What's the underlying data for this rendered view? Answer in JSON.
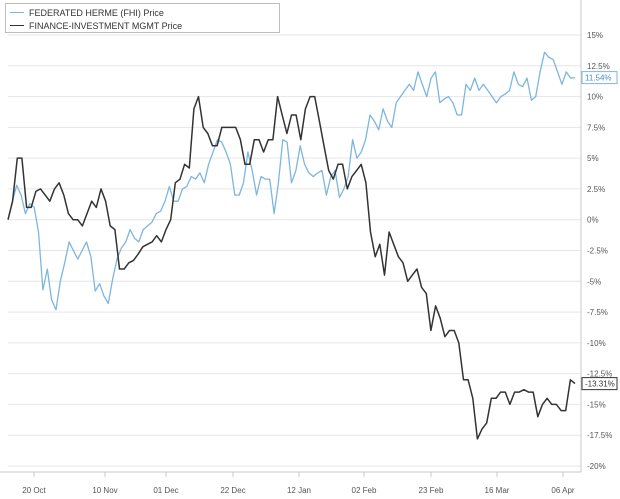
{
  "colors": {
    "fhi": "#7db6df",
    "fimg": "#333333",
    "grid": "#e6e6e6",
    "axis": "#c8c8c8",
    "tick_text": "#555555"
  },
  "chart_data": {
    "type": "line",
    "title": "",
    "xlabel": "",
    "ylabel": "",
    "ylim": [
      -20,
      15
    ],
    "y_ticks": [
      15,
      12.5,
      10,
      7.5,
      5,
      2.5,
      0,
      -2.5,
      -5,
      -7.5,
      -10,
      -12.5,
      -15,
      -17.5,
      -20
    ],
    "y_tick_labels": [
      "15%",
      "12.5%",
      "10%",
      "7.5%",
      "5%",
      "2.5%",
      "0%",
      "-2.5%",
      "-5%",
      "-7.5%",
      "-10%",
      "-12.5%",
      "-15%",
      "-17.5%",
      "-20%"
    ],
    "x_tick_labels": [
      "20 Oct",
      "10 Nov",
      "01 Dec",
      "22 Dec",
      "12 Jan",
      "02 Feb",
      "23 Feb",
      "16 Mar",
      "06 Apr"
    ],
    "legend_position": "top-left",
    "grid": "horizontal",
    "series": [
      {
        "name": "FEDERATED HERME (FHI) Price",
        "color_key": "fhi",
        "last_label": "11.54%",
        "values": [
          0.0,
          1.5,
          2.8,
          2.0,
          0.5,
          1.3,
          1.0,
          -1.0,
          -5.7,
          -4.0,
          -6.5,
          -7.3,
          -5.0,
          -3.5,
          -1.8,
          -2.5,
          -3.2,
          -2.5,
          -1.8,
          -3.0,
          -5.8,
          -5.2,
          -6.2,
          -6.8,
          -4.8,
          -3.2,
          -2.3,
          -1.8,
          -0.8,
          -1.5,
          -1.8,
          -0.8,
          -0.5,
          -0.2,
          0.5,
          0.7,
          1.5,
          2.7,
          1.5,
          1.5,
          2.5,
          2.7,
          3.5,
          3.3,
          3.8,
          3.0,
          4.5,
          5.5,
          6.5,
          6.3,
          5.5,
          4.5,
          2.0,
          2.0,
          3.0,
          5.5,
          4.0,
          2.0,
          3.5,
          3.3,
          3.3,
          0.5,
          3.0,
          6.5,
          6.3,
          3.0,
          4.0,
          6.0,
          4.5,
          3.8,
          3.5,
          3.8,
          4.0,
          2.0,
          3.5,
          4.0,
          1.8,
          2.5,
          3.5,
          6.5,
          5.0,
          5.5,
          6.5,
          8.5,
          8.0,
          7.3,
          9.0,
          8.0,
          7.5,
          9.5,
          10.0,
          10.5,
          11.0,
          10.5,
          12.0,
          11.0,
          10.0,
          11.5,
          12.0,
          9.5,
          9.8,
          10.0,
          9.5,
          8.5,
          8.5,
          11.0,
          10.5,
          11.5,
          10.5,
          11.0,
          10.5,
          10.0,
          9.5,
          10.0,
          10.2,
          10.5,
          12.0,
          11.0,
          10.8,
          11.5,
          9.7,
          10.0,
          12.0,
          13.6,
          13.2,
          13.0,
          12.0,
          11.0,
          12.0,
          11.5,
          11.54
        ]
      },
      {
        "name": "FINANCE-INVESTMENT MGMT Price",
        "color_key": "fimg",
        "last_label": "-13.31%",
        "values": [
          0.0,
          1.5,
          5.0,
          5.0,
          1.0,
          1.0,
          2.3,
          2.5,
          2.0,
          1.5,
          2.5,
          3.0,
          2.0,
          0.5,
          0.0,
          0.0,
          -0.5,
          0.5,
          1.5,
          1.0,
          2.5,
          1.5,
          -0.5,
          -0.8,
          -4.0,
          -4.0,
          -3.5,
          -3.3,
          -2.8,
          -2.2,
          -2.0,
          -1.8,
          -1.3,
          -1.8,
          -0.8,
          0.0,
          3.0,
          3.3,
          4.5,
          4.2,
          9.0,
          10.0,
          7.5,
          7.0,
          6.0,
          6.0,
          7.5,
          7.5,
          7.5,
          7.5,
          6.5,
          4.5,
          4.5,
          6.5,
          6.5,
          5.5,
          6.5,
          6.5,
          10.0,
          8.5,
          7.0,
          8.5,
          8.5,
          6.5,
          9.0,
          10.0,
          10.0,
          8.0,
          6.0,
          4.0,
          3.3,
          4.5,
          4.5,
          2.5,
          3.5,
          4.0,
          4.5,
          3.0,
          -1.0,
          -3.0,
          -2.0,
          -4.5,
          -1.0,
          -2.0,
          -3.0,
          -3.5,
          -5.0,
          -4.5,
          -4.0,
          -5.5,
          -6.0,
          -9.0,
          -7.0,
          -8.0,
          -9.5,
          -9.0,
          -9.0,
          -10.0,
          -13.0,
          -13.0,
          -14.5,
          -17.8,
          -17.0,
          -16.5,
          -14.5,
          -14.5,
          -14.0,
          -14.0,
          -15.0,
          -14.0,
          -14.0,
          -13.8,
          -14.0,
          -14.0,
          -16.0,
          -15.0,
          -14.5,
          -15.0,
          -15.0,
          -15.5,
          -15.5,
          -13.0,
          -13.31
        ]
      }
    ]
  }
}
